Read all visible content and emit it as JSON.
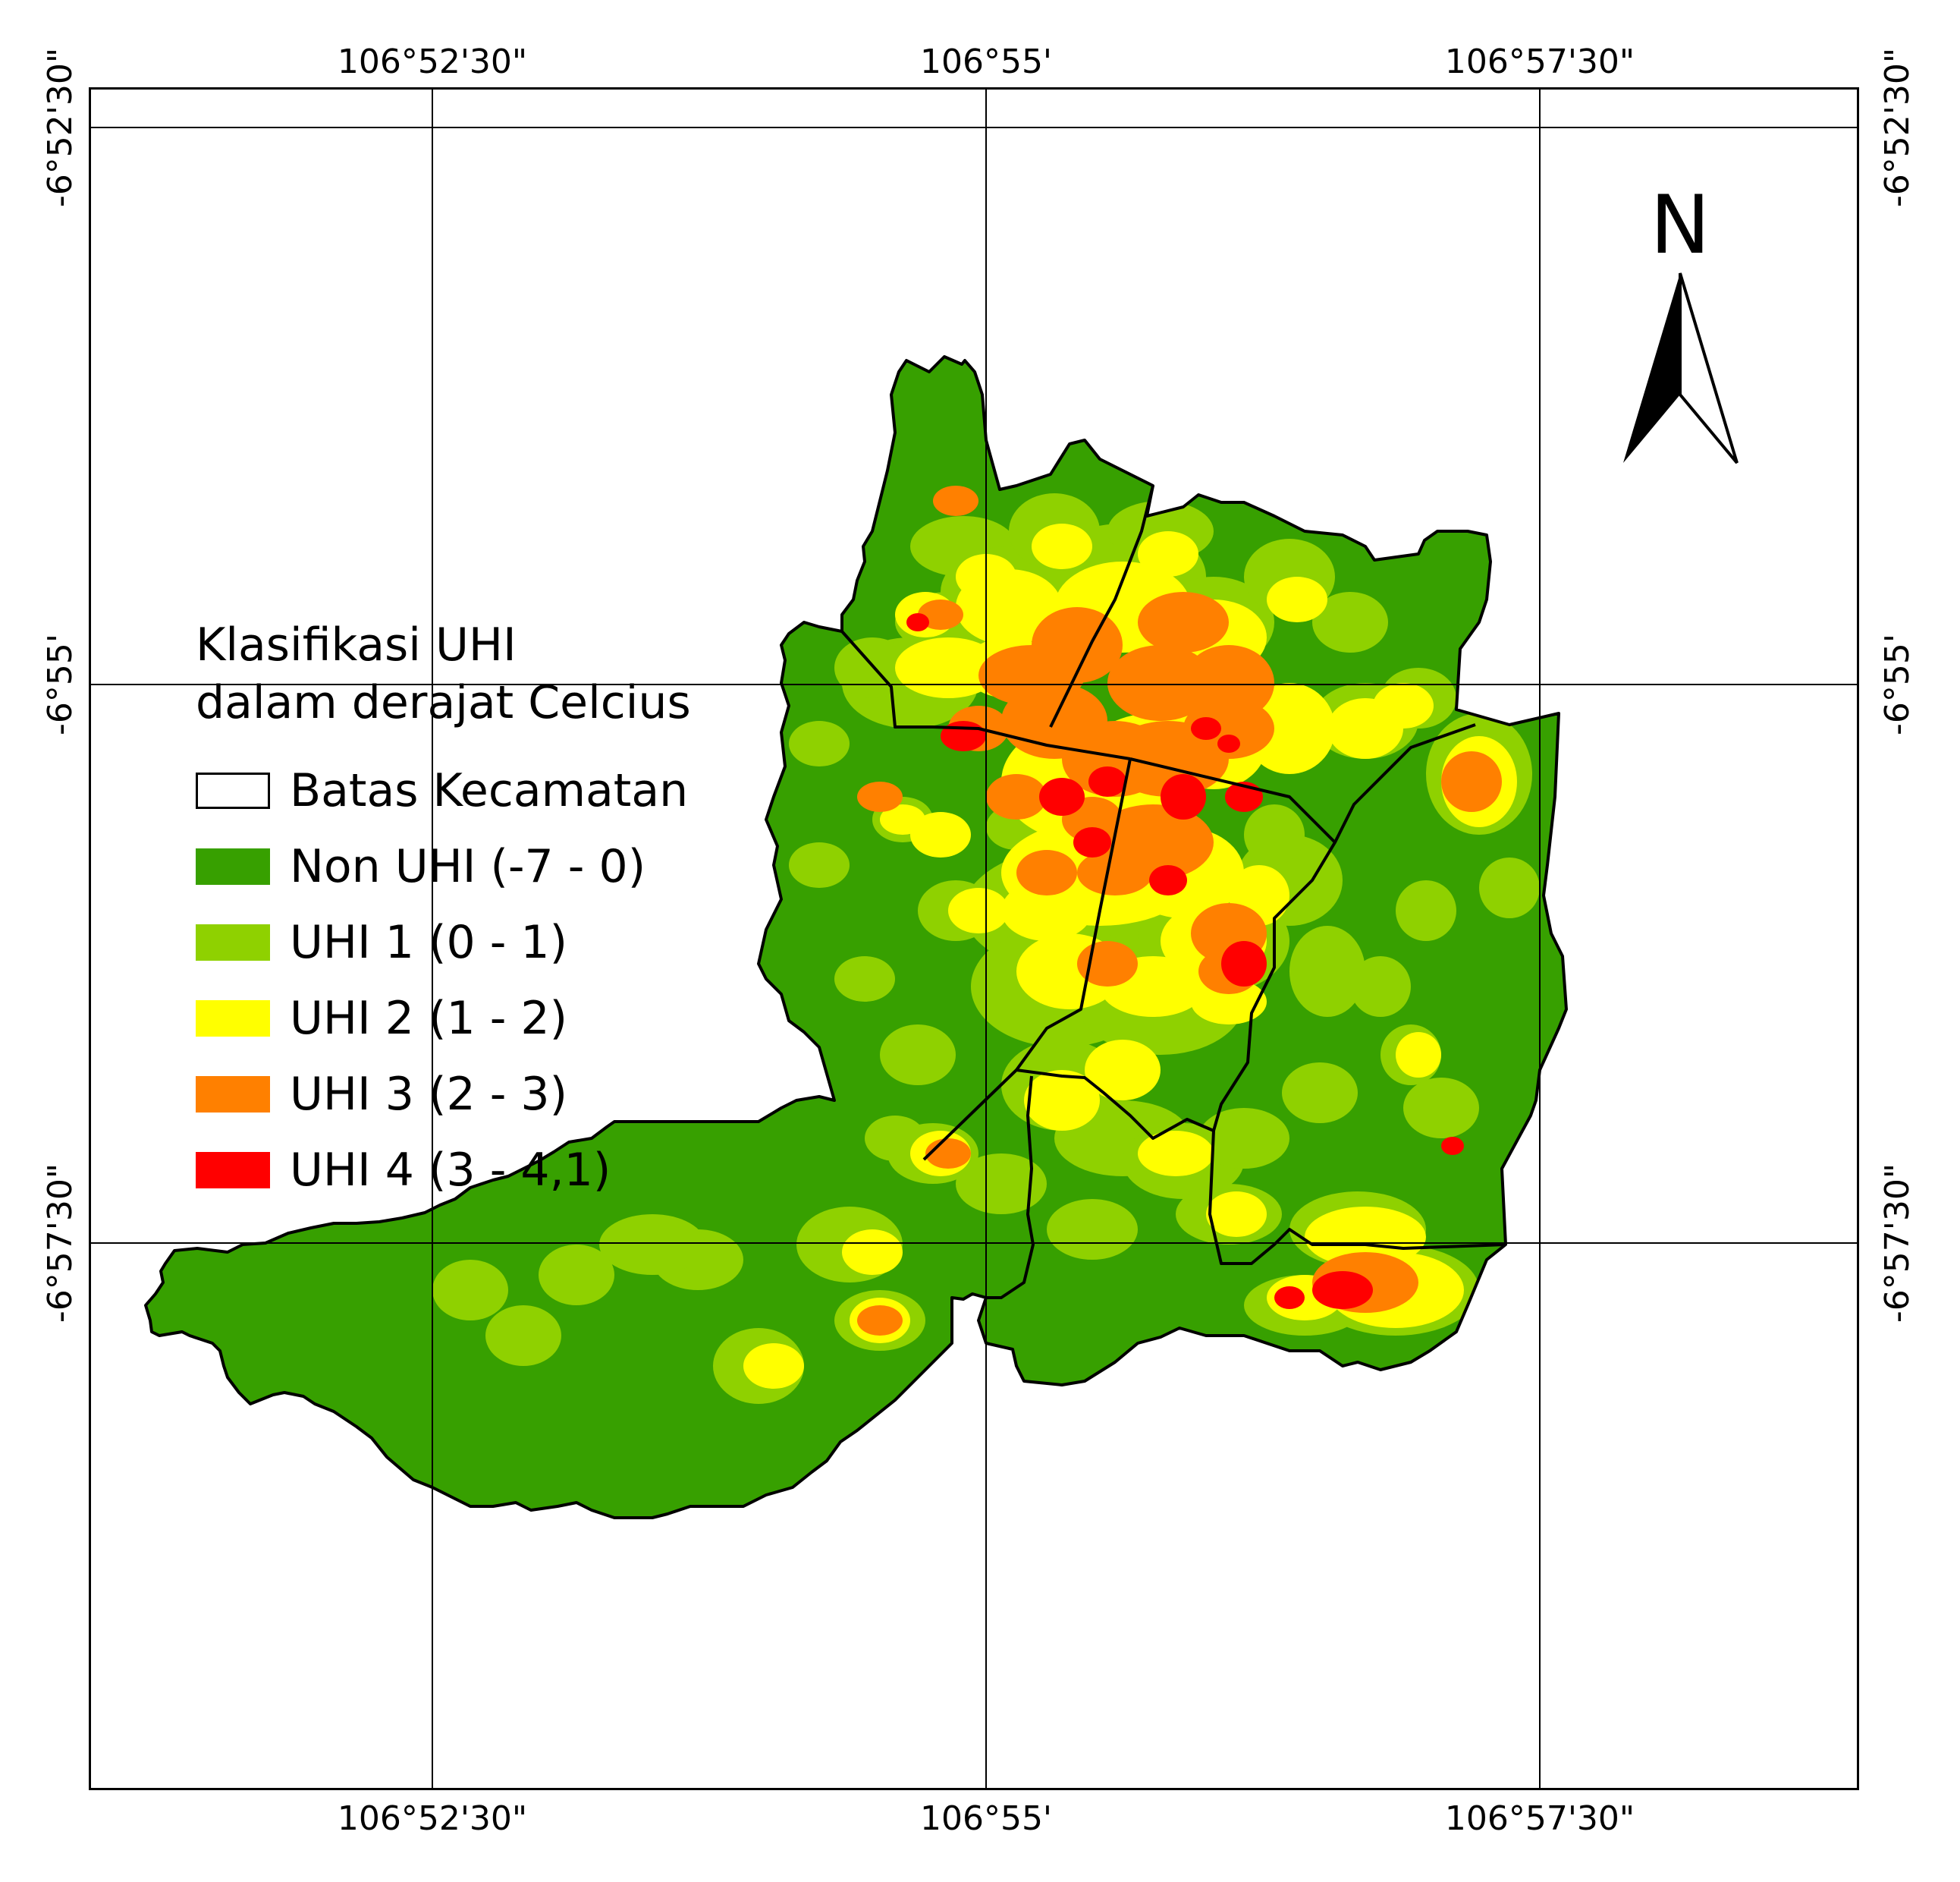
{
  "coordinates": {
    "longitudes": [
      "106°52'30\"",
      "106°55'",
      "106°57'30\""
    ],
    "latitudes": [
      "-6°52'30\"",
      "-6°55'",
      "-6°57'30\""
    ]
  },
  "north_arrow": {
    "label": "N"
  },
  "legend": {
    "title": "Klasifikasi UHI\ndalam derajat Celcius",
    "items": [
      {
        "label": "Batas Kecamatan",
        "color": "#ffffff",
        "outline": true
      },
      {
        "label": "Non UHI (-7 - 0)",
        "color": "#37a000"
      },
      {
        "label": "UHI 1 (0 - 1)",
        "color": "#8fd100"
      },
      {
        "label": "UHI 2 (1 - 2)",
        "color": "#ffff00"
      },
      {
        "label": "UHI 3 (2 - 3)",
        "color": "#ff8000"
      },
      {
        "label": "UHI 4 (3 - 4,1)",
        "color": "#ff0000"
      }
    ]
  },
  "colors": {
    "non_uhi": "#37a000",
    "uhi1": "#8fd100",
    "uhi2": "#ffff00",
    "uhi3": "#ff8000",
    "uhi4": "#ff0000",
    "boundary": "#000000",
    "grid": "#000000"
  }
}
